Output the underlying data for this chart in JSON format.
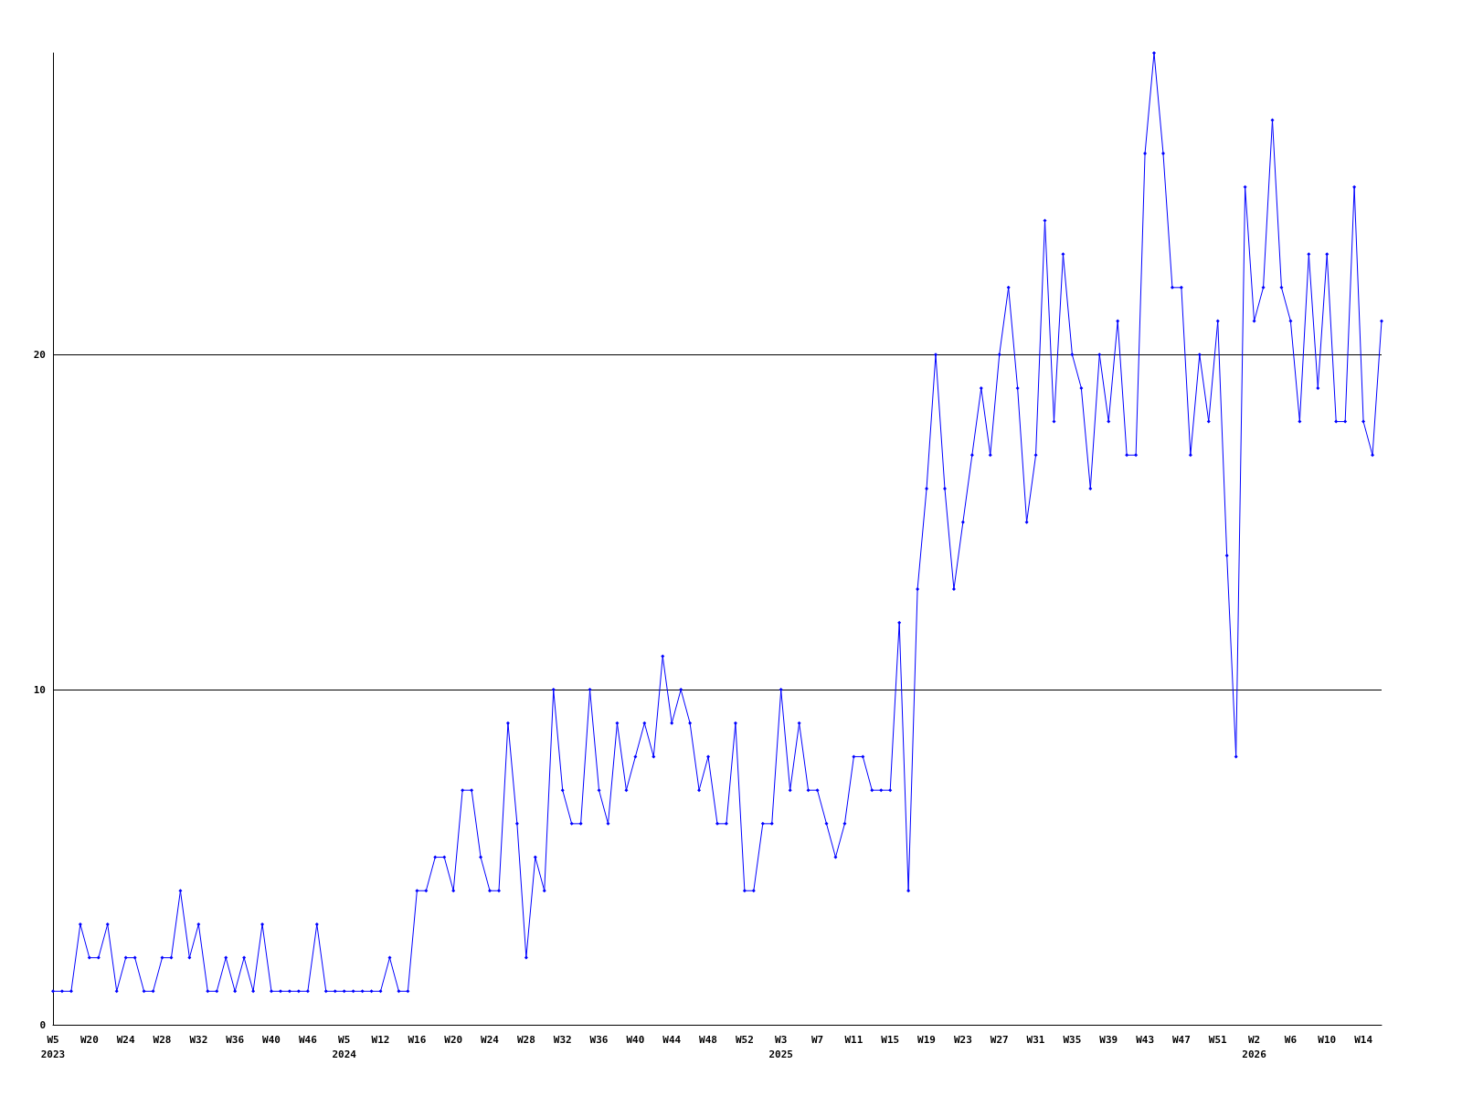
{
  "chart_data": {
    "type": "line",
    "categories": [
      "W5\n2023",
      null,
      null,
      null,
      "W20",
      null,
      null,
      null,
      "W24",
      null,
      null,
      null,
      "W28",
      null,
      null,
      null,
      "W32",
      null,
      null,
      null,
      "W36",
      null,
      null,
      null,
      "W40",
      null,
      null,
      null,
      "W46",
      null,
      null,
      null,
      "W5\n2024",
      null,
      null,
      null,
      "W12",
      null,
      null,
      null,
      "W16",
      null,
      null,
      null,
      "W20",
      null,
      null,
      null,
      "W24",
      null,
      null,
      null,
      "W28",
      null,
      null,
      null,
      "W32",
      null,
      null,
      null,
      "W36",
      null,
      null,
      null,
      "W40",
      null,
      null,
      null,
      "W44",
      null,
      null,
      null,
      "W48",
      null,
      null,
      null,
      "W52",
      null,
      null,
      null,
      "W3\n2025",
      null,
      null,
      null,
      "W7",
      null,
      null,
      null,
      "W11",
      null,
      null,
      null,
      "W15",
      null,
      null,
      null,
      "W19",
      null,
      null,
      null,
      "W23",
      null,
      null,
      null,
      "W27",
      null,
      null,
      null,
      "W31",
      null,
      null,
      null,
      "W35",
      null,
      null,
      null,
      "W39",
      null,
      null,
      null,
      "W43",
      null,
      null,
      null,
      "W47",
      null,
      null,
      null,
      "W51",
      null,
      null,
      null,
      "W2\n2026",
      null,
      null,
      null,
      "W6",
      null,
      null,
      null,
      "W10",
      null,
      null,
      null,
      "W14",
      null,
      null
    ],
    "series": [
      {
        "color": "#0000ff",
        "values": [
          1,
          1,
          1,
          3,
          2,
          2,
          3,
          1,
          2,
          2,
          1,
          1,
          2,
          2,
          4,
          2,
          3,
          1,
          1,
          2,
          1,
          2,
          1,
          3,
          1,
          1,
          1,
          1,
          1,
          3,
          1,
          1,
          1,
          1,
          1,
          1,
          1,
          2,
          1,
          1,
          4,
          4,
          5,
          5,
          4,
          7,
          7,
          5,
          4,
          4,
          9,
          6,
          2,
          5,
          4,
          10,
          7,
          6,
          6,
          10,
          7,
          6,
          9,
          7,
          8,
          9,
          8,
          11,
          9,
          10,
          9,
          7,
          8,
          6,
          6,
          9,
          4,
          4,
          6,
          6,
          10,
          7,
          9,
          7,
          7,
          6,
          5,
          6,
          8,
          8,
          7,
          7,
          7,
          12,
          4,
          13,
          16,
          20,
          16,
          13,
          15,
          17,
          19,
          17,
          20,
          22,
          19,
          15,
          17,
          24,
          18,
          23,
          20,
          19,
          16,
          20,
          18,
          21,
          17,
          17,
          26,
          29,
          26,
          22,
          22,
          17,
          20,
          18,
          21,
          14,
          8,
          25,
          21,
          22,
          27,
          22,
          21,
          18,
          23,
          19,
          23,
          18,
          18,
          25,
          18,
          17,
          21
        ]
      }
    ],
    "ylim": [
      0,
      29
    ],
    "yticks": [
      0,
      10,
      20
    ],
    "grid": "y",
    "marker": "diamond",
    "line_style": "solid"
  }
}
